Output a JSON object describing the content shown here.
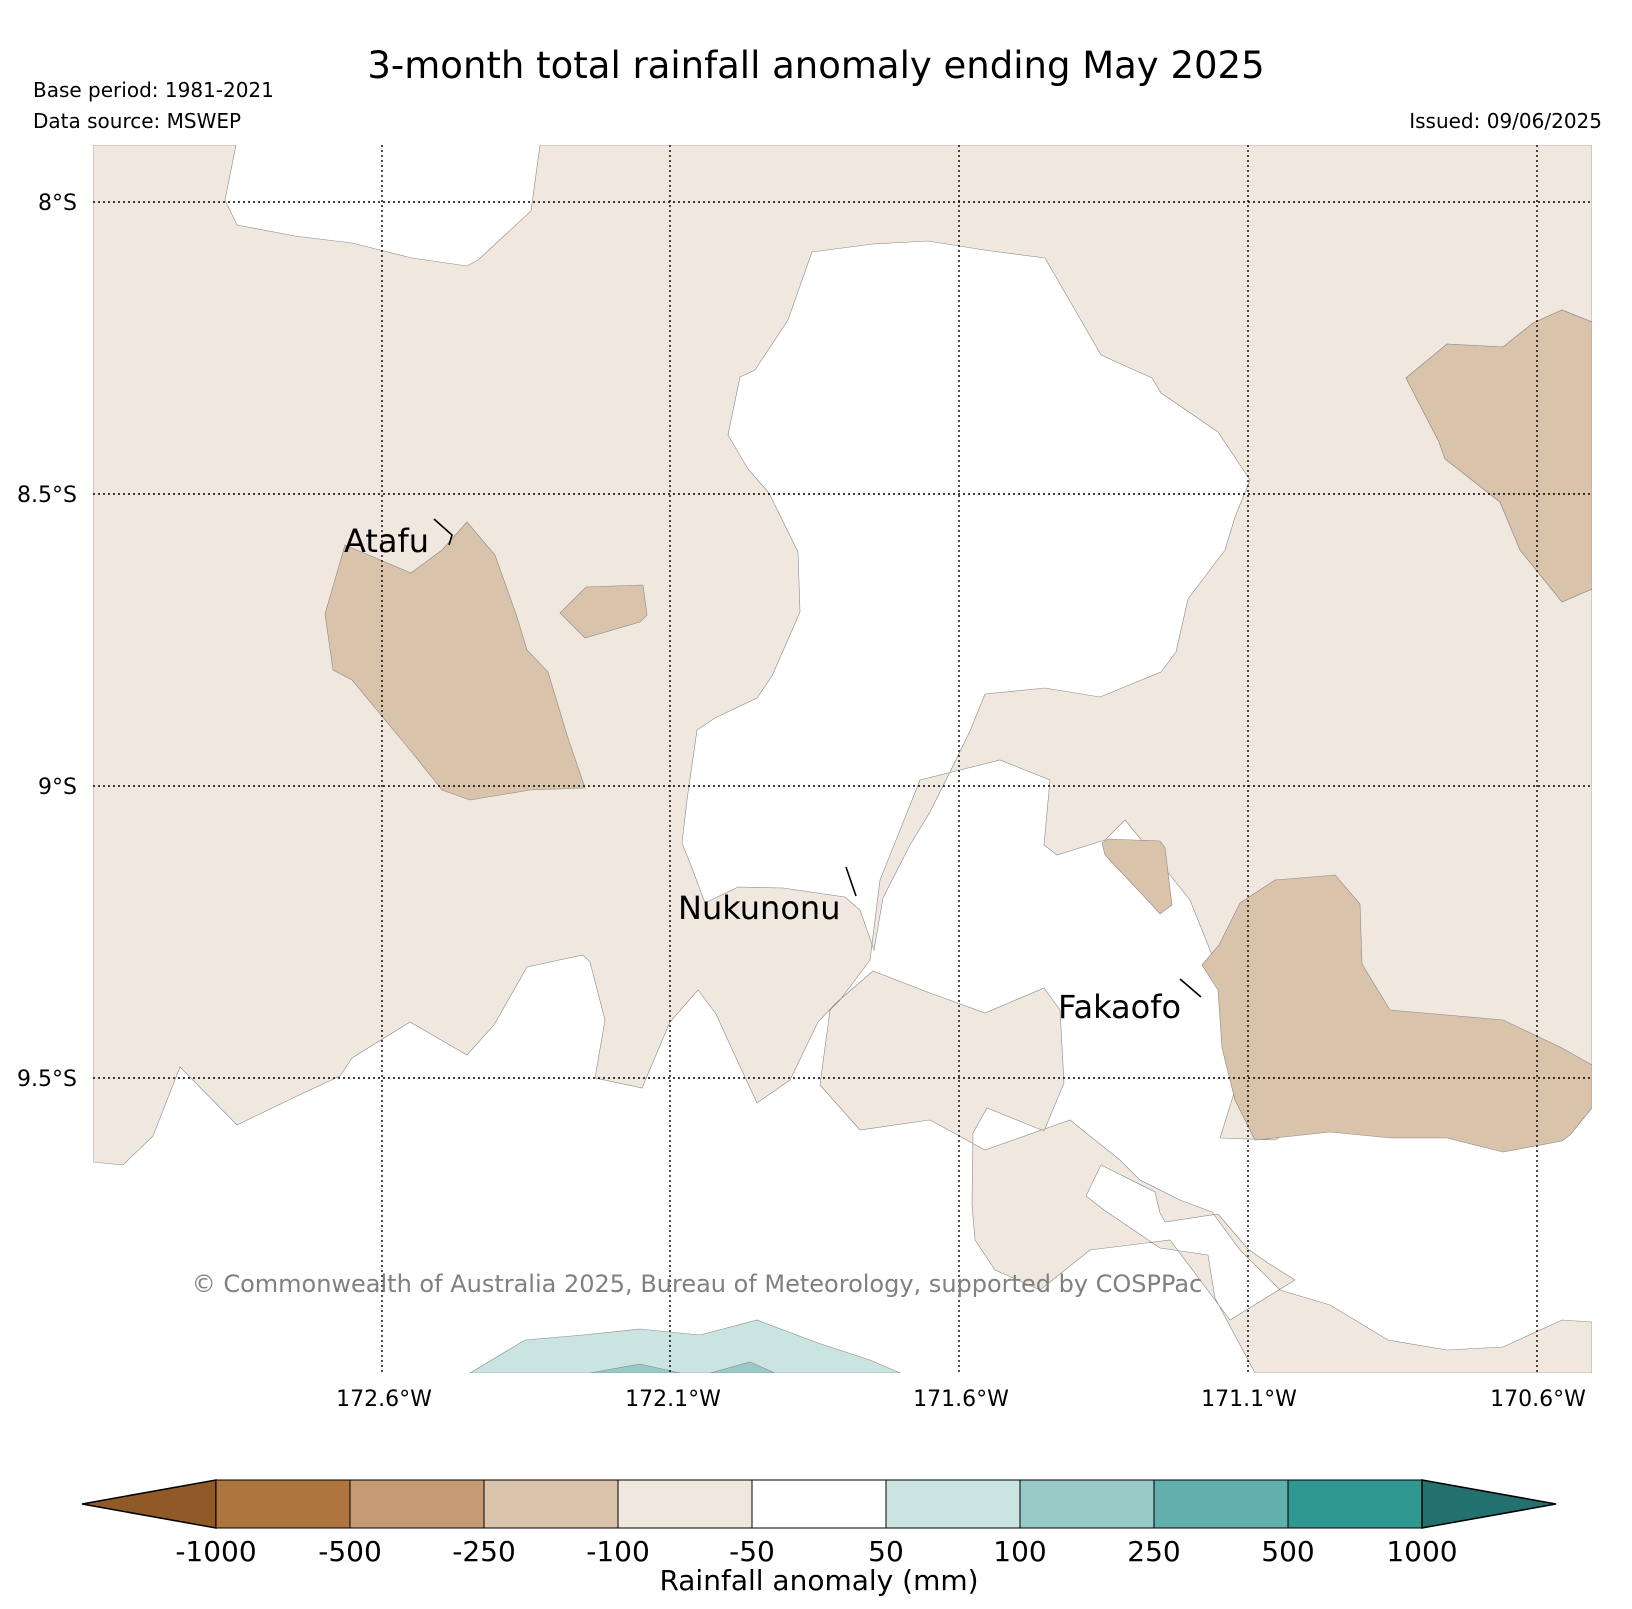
{
  "header": {
    "title": "3-month total rainfall anomaly ending May 2025",
    "base_period": "Base period: 1981-2021",
    "data_source": "Data source: MSWEP",
    "issued": "Issued: 09/06/2025"
  },
  "map": {
    "lat_labels": [
      "8°S",
      "8.5°S",
      "9°S",
      "9.5°S"
    ],
    "lon_labels": [
      "172.6°W",
      "172.1°W",
      "171.6°W",
      "171.1°W",
      "170.6°W"
    ],
    "places": [
      "Atafu",
      "Nukunonu",
      "Fakaofo"
    ],
    "copyright": "© Commonwealth of Australia 2025, Bureau of Meteorology, supported by COSPPac"
  },
  "colorbar": {
    "label": "Rainfall anomaly (mm)",
    "ticks": [
      "-1000",
      "-500",
      "-250",
      "-100",
      "-50",
      "50",
      "100",
      "250",
      "500",
      "1000"
    ],
    "colors": [
      "#8f5a28",
      "#ae763e",
      "#c49b73",
      "#dac3ab",
      "#f0e7de",
      "#ffffff",
      "#cae4e1",
      "#98cac8",
      "#62b0ae",
      "#2f9891",
      "#23716e"
    ]
  },
  "colors": {
    "dry_light": "#f0e7de",
    "dry_medium": "#dac3ab",
    "wet_light": "#cae4e1",
    "wet_medium": "#98cac8"
  }
}
